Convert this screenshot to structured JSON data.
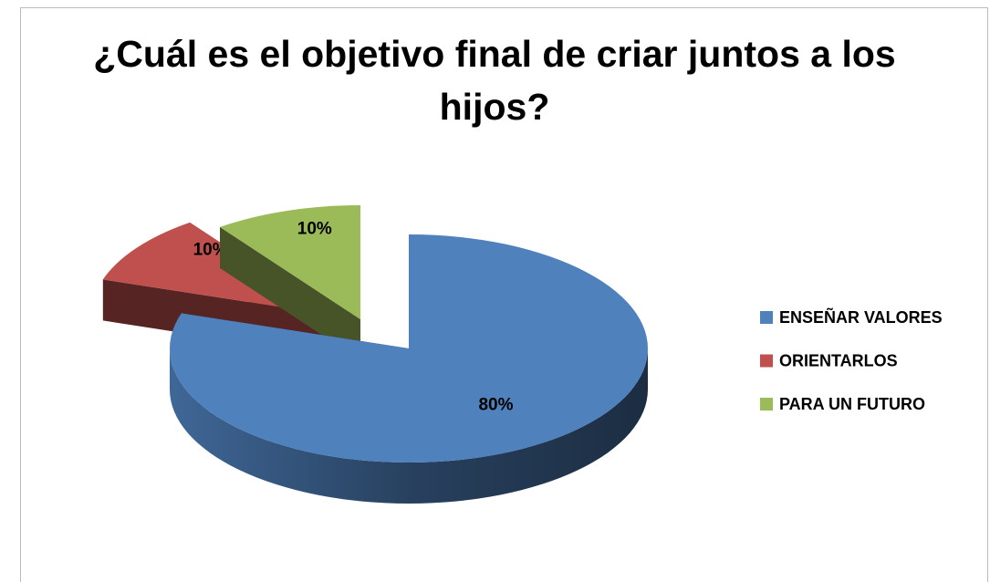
{
  "chart_data": {
    "type": "pie3d",
    "title": "¿Cuál es el objetivo final de criar juntos a los hijos?",
    "categories": [
      "ENSEÑAR VALORES",
      "ORIENTARLOS",
      "PARA UN FUTURO"
    ],
    "values": [
      80,
      10,
      10
    ],
    "value_labels": [
      "80%",
      "10%",
      "10%"
    ],
    "colors": [
      "#4f81bd",
      "#c0504d",
      "#9bbb59"
    ],
    "legend": "right"
  }
}
